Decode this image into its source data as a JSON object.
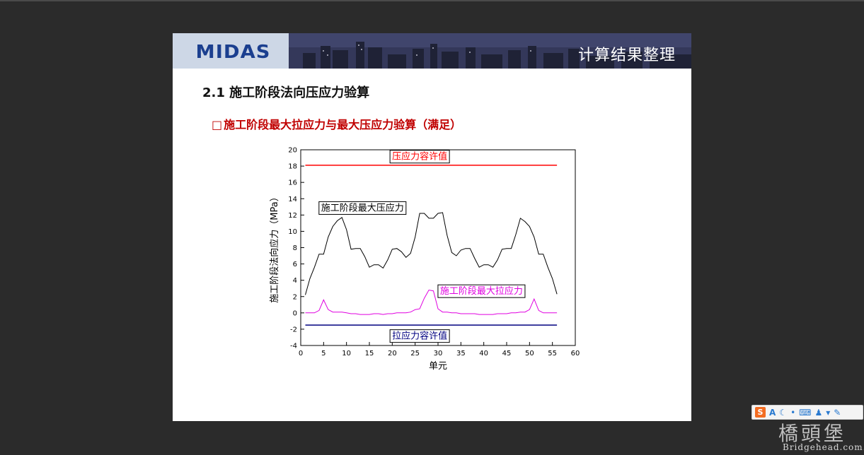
{
  "slide": {
    "logo": "MIDAS",
    "header_title": "计算结果整理",
    "section_title": "2.1 施工阶段法向压应力验算",
    "sub_bullet": "□",
    "sub_title": "施工阶段最大拉应力与最大压应力验算（满足）"
  },
  "tray": {
    "icons": [
      "sogou-s-icon",
      "font-a-icon",
      "moon-icon",
      "punctuation-icon",
      "keyboard-icon",
      "user-icon",
      "shirt-icon",
      "wrench-icon"
    ],
    "a_label": "A"
  },
  "watermark": {
    "logo_text": "橋頭堡",
    "url": "Bridgehead.com.cn"
  },
  "chart_data": {
    "type": "line",
    "xlabel": "单元",
    "ylabel": "施工阶段法向应力（MPa）",
    "xlim": [
      0,
      60
    ],
    "ylim": [
      -4,
      20
    ],
    "xticks": [
      0,
      5,
      10,
      15,
      20,
      25,
      30,
      35,
      40,
      45,
      50,
      55,
      60
    ],
    "yticks": [
      -4,
      -2,
      0,
      2,
      4,
      6,
      8,
      10,
      12,
      14,
      16,
      18,
      20
    ],
    "grid": false,
    "series": [
      {
        "name": "施工阶段最大压应力",
        "color": "#000000",
        "x": [
          1,
          2,
          3,
          4,
          5,
          6,
          7,
          8,
          9,
          10,
          11,
          12,
          13,
          14,
          15,
          16,
          17,
          18,
          19,
          20,
          21,
          22,
          23,
          24,
          25,
          26,
          27,
          28,
          29,
          30,
          31,
          32,
          33,
          34,
          35,
          36,
          37,
          38,
          39,
          40,
          41,
          42,
          43,
          44,
          45,
          46,
          47,
          48,
          49,
          50,
          51,
          52,
          53,
          54,
          55,
          56
        ],
        "y": [
          2.2,
          4.2,
          5.6,
          7.2,
          7.2,
          9.3,
          10.6,
          11.3,
          11.7,
          10.2,
          7.8,
          7.9,
          7.9,
          6.9,
          5.6,
          5.9,
          5.9,
          5.5,
          6.5,
          7.8,
          7.9,
          7.5,
          6.8,
          7.3,
          9.3,
          12.2,
          12.2,
          11.6,
          11.6,
          12.2,
          12.3,
          9.5,
          7.4,
          7.0,
          7.7,
          7.9,
          7.9,
          6.7,
          5.6,
          5.9,
          5.9,
          5.6,
          6.5,
          7.8,
          7.9,
          7.9,
          9.6,
          11.6,
          11.2,
          10.6,
          9.3,
          7.2,
          7.2,
          5.6,
          4.2,
          2.3
        ]
      },
      {
        "name": "施工阶段最大拉应力",
        "color": "#e000e0",
        "x": [
          1,
          2,
          3,
          4,
          5,
          6,
          7,
          8,
          9,
          10,
          11,
          12,
          13,
          14,
          15,
          16,
          17,
          18,
          19,
          20,
          21,
          22,
          23,
          24,
          25,
          26,
          27,
          28,
          29,
          30,
          31,
          32,
          33,
          34,
          35,
          36,
          37,
          38,
          39,
          40,
          41,
          42,
          43,
          44,
          45,
          46,
          47,
          48,
          49,
          50,
          51,
          52,
          53,
          54,
          55,
          56
        ],
        "y": [
          0,
          0,
          0,
          0.3,
          1.6,
          0.4,
          0.1,
          0.1,
          0.1,
          0,
          -0.1,
          -0.1,
          -0.2,
          -0.2,
          -0.2,
          -0.1,
          -0.1,
          -0.2,
          -0.1,
          -0.1,
          0,
          0,
          0,
          0.1,
          0.4,
          0.5,
          1.8,
          2.8,
          2.7,
          0.5,
          0.1,
          0.1,
          0,
          0,
          -0.1,
          -0.1,
          -0.1,
          -0.1,
          -0.2,
          -0.2,
          -0.2,
          -0.2,
          -0.1,
          -0.1,
          -0.1,
          0,
          0,
          0.1,
          0.1,
          0.4,
          1.7,
          0.3,
          0,
          0,
          0,
          0
        ]
      },
      {
        "name": "压应力容许值",
        "color": "#ff0000",
        "x": [
          1,
          56
        ],
        "y": [
          18.1,
          18.1
        ]
      },
      {
        "name": "拉应力容许值",
        "color": "#000080",
        "x": [
          1,
          56
        ],
        "y": [
          -1.5,
          -1.5
        ]
      }
    ],
    "annotations": [
      {
        "text": "压应力容许值",
        "color": "#ff0000",
        "x": 26,
        "y": 19.2
      },
      {
        "text": "施工阶段最大压应力",
        "color": "#000000",
        "x": 13.5,
        "y": 12.9
      },
      {
        "text": "施工阶段最大拉应力",
        "color": "#e000e0",
        "x": 39.5,
        "y": 2.7
      },
      {
        "text": "拉应力容许值",
        "color": "#000080",
        "x": 26,
        "y": -2.8
      }
    ]
  }
}
